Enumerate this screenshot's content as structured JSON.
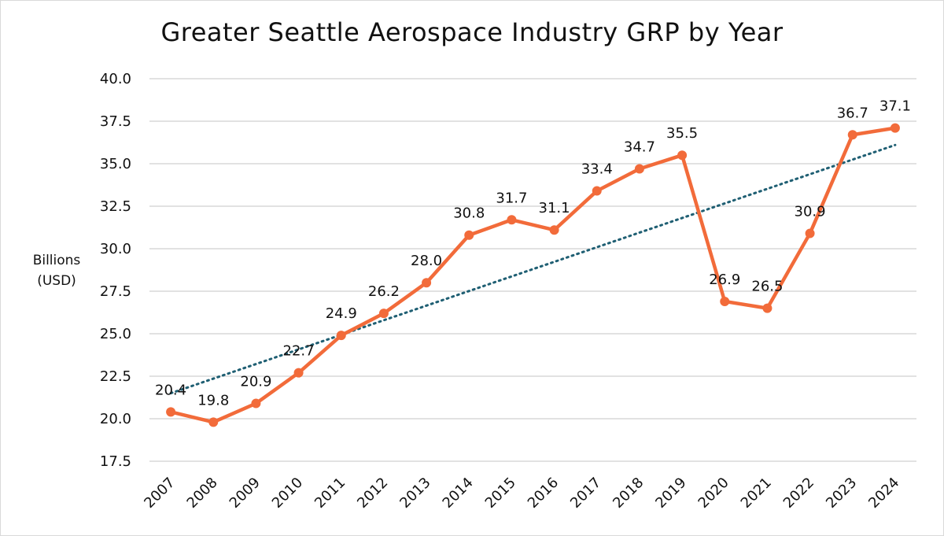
{
  "chart_data": {
    "type": "line",
    "title": "Greater Seattle Aerospace Industry GRP by Year",
    "ylabel_lines": [
      "Billions",
      "(USD)"
    ],
    "xlabel": "",
    "categories": [
      "2007",
      "2008",
      "2009",
      "2010",
      "2011",
      "2012",
      "2013",
      "2014",
      "2015",
      "2016",
      "2017",
      "2018",
      "2019",
      "2020",
      "2021",
      "2022",
      "2023",
      "2024"
    ],
    "series": [
      {
        "name": "GRP",
        "values": [
          20.4,
          19.8,
          20.9,
          22.7,
          24.9,
          26.2,
          28.0,
          30.8,
          31.7,
          31.1,
          33.4,
          34.7,
          35.5,
          26.9,
          26.5,
          30.9,
          36.7,
          37.1
        ],
        "labels": [
          "20.4",
          "19.8",
          "20.9",
          "22.7",
          "24.9",
          "26.2",
          "28.0",
          "30.8",
          "31.7",
          "31.1",
          "33.4",
          "34.7",
          "35.5",
          "26.9",
          "26.5",
          "30.9",
          "36.7",
          "37.1"
        ],
        "color": "#f26b3a"
      }
    ],
    "trendline": {
      "type": "linear",
      "style": "dotted",
      "start": 21.5,
      "end": 36.1,
      "color": "#1f5f73"
    },
    "ylim": [
      17.5,
      40.0
    ],
    "yticks": [
      "17.5",
      "20.0",
      "22.5",
      "25.0",
      "27.5",
      "30.0",
      "32.5",
      "35.0",
      "37.5",
      "40.0"
    ],
    "grid": true,
    "gridColor": "#d9d9d9"
  }
}
